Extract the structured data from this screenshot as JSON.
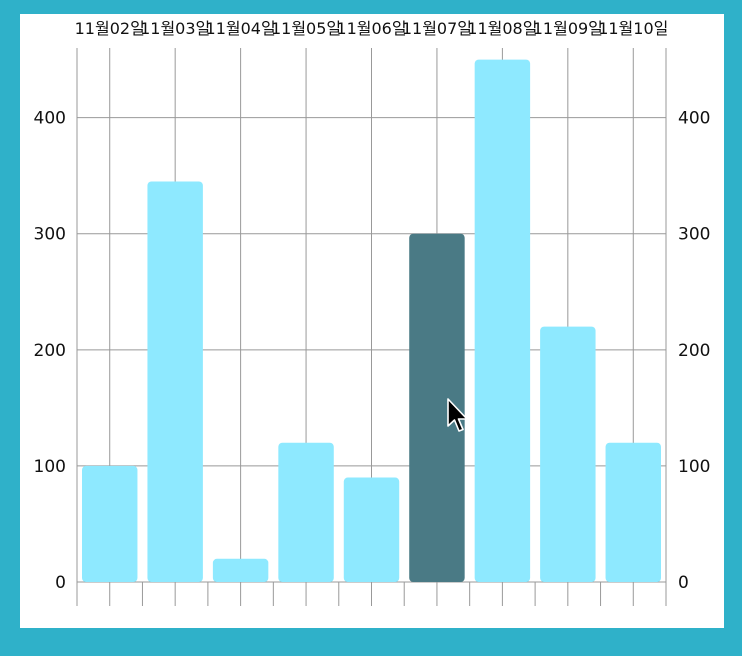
{
  "colors": {
    "window_border": "#2fb1c9",
    "bar": "#8ee9ff",
    "bar_selected": "#4a7a85",
    "grid": "#999999",
    "text": "#111111"
  },
  "cursor": {
    "icon": "arrow-cursor-icon"
  },
  "chart_data": {
    "type": "bar",
    "categories": [
      "11월02일",
      "11월03일",
      "11월04일",
      "11월05일",
      "11월06일",
      "11월07일",
      "11월08일",
      "11월09일",
      "11월10일"
    ],
    "series": [
      {
        "values": [
          100,
          345,
          20,
          120,
          90,
          300,
          450,
          220,
          120
        ]
      }
    ],
    "selected_index": 5,
    "ylim": [
      0,
      460
    ],
    "yticks": [
      0,
      100,
      200,
      300,
      400
    ],
    "y_axis": "both sides",
    "x_axis_labels": "top",
    "grid": true,
    "legend": "none",
    "title": "",
    "xlabel": "",
    "ylabel": ""
  }
}
